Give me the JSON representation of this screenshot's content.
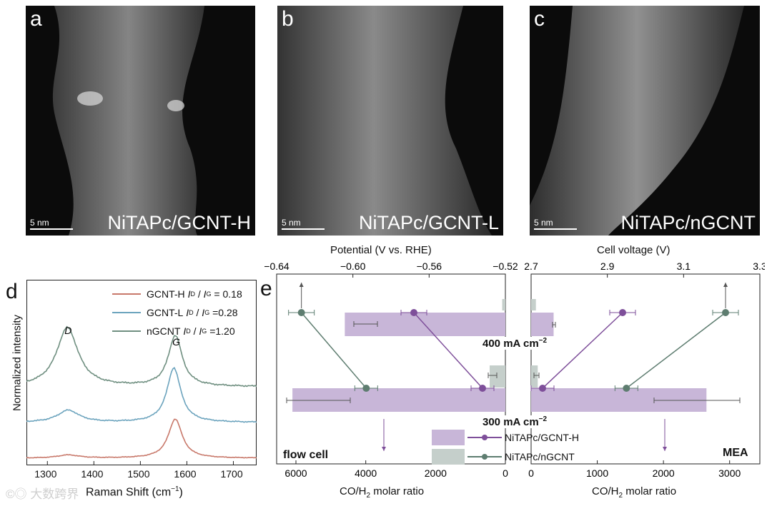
{
  "panels_top": [
    {
      "letter": "a",
      "caption": "NiTAPc/GCNT-H",
      "scale": "5 nm"
    },
    {
      "letter": "b",
      "caption": "NiTAPc/GCNT-L",
      "scale": "5 nm"
    },
    {
      "letter": "c",
      "caption": "NiTAPc/nGCNT",
      "scale": "5 nm"
    }
  ],
  "panel_d": {
    "letter": "d",
    "legend": [
      {
        "name": "GCNT-H",
        "ratio": "= 0.18",
        "color": "#c8786a"
      },
      {
        "name": "GCNT-L",
        "ratio": "=0.28",
        "color": "#6ba3bd"
      },
      {
        "name": "nGCNT",
        "ratio": "=1.20",
        "color": "#6f8f80"
      }
    ],
    "peak_labels": {
      "d": "D",
      "g": "G"
    }
  },
  "panel_e": {
    "letter": "e",
    "left_label": "flow cell",
    "right_label": "MEA",
    "current_labels": [
      "400 mA cm",
      "300 mA cm"
    ],
    "current_sup": "−2",
    "legend": [
      {
        "name": "NiTAPc/GCNT-H",
        "color": "#7e4f9a",
        "fill": "#c8b6d8"
      },
      {
        "name": "NiTAPc/nGCNT",
        "color": "#5e7d70",
        "fill": "#c5cfcb"
      }
    ]
  },
  "chart_data": [
    {
      "type": "line",
      "panel": "d",
      "xlabel_main": "Raman Shift (cm",
      "xlabel_sup": "−1",
      "xlabel_close": ")",
      "ylabel": "Normalized intensity",
      "x_ticks": [
        "1300",
        "1400",
        "1500",
        "1600",
        "1700"
      ],
      "xlim": [
        1255,
        1750
      ],
      "series": [
        {
          "name": "GCNT-H",
          "color": "#c8786a",
          "peaks": [
            [
              1345,
              0.08
            ],
            [
              1575,
              1.0
            ]
          ],
          "offset": 0
        },
        {
          "name": "GCNT-L",
          "color": "#6ba3bd",
          "peaks": [
            [
              1345,
              0.2
            ],
            [
              1572,
              0.9
            ]
          ],
          "offset": 1
        },
        {
          "name": "nGCNT",
          "color": "#6f8f80",
          "peaks": [
            [
              1343,
              0.72
            ],
            [
              1575,
              0.62
            ]
          ],
          "offset": 2
        }
      ]
    },
    {
      "type": "bar",
      "panel": "e",
      "top_left_label": "Potential (V vs. RHE)",
      "top_left_ticks": [
        "−0.64",
        "−0.60",
        "−0.56",
        "−0.52"
      ],
      "top_left_xlim": [
        -0.64,
        -0.52
      ],
      "top_right_label": "Cell voltage (V)",
      "top_right_ticks": [
        "2.7",
        "2.9",
        "3.1",
        "3.3"
      ],
      "top_right_xlim": [
        2.7,
        3.3
      ],
      "bottom_left_label": "CO/H",
      "bottom_label_sub": "2",
      "bottom_label_tail": " molar ratio",
      "bottom_left_ticks": [
        "6000",
        "4000",
        "2000",
        "0"
      ],
      "bottom_left_xlim": [
        0,
        7500
      ],
      "bottom_right_ticks": [
        "0",
        "1000",
        "2000",
        "3000"
      ],
      "bottom_right_xlim": [
        0,
        3500
      ],
      "bars": {
        "flow_400": {
          "gcnt_h": 4600,
          "ngcnt": 30
        },
        "flow_300": {
          "gcnt_h": 6100,
          "ngcnt": 450
        },
        "mea_400": {
          "gcnt_h": 340,
          "ngcnt": 40
        },
        "mea_300": {
          "gcnt_h": 2650,
          "ngcnt": 100
        }
      },
      "potential_points": {
        "gcnt_h": {
          "400": -0.568,
          "300": -0.532
        },
        "ngcnt": {
          "400": -0.627,
          "300": -0.593
        }
      },
      "voltage_points": {
        "gcnt_h": {
          "400": 2.94,
          "300": 2.73
        },
        "ngcnt": {
          "400": 3.21,
          "300": 2.95
        }
      }
    }
  ]
}
